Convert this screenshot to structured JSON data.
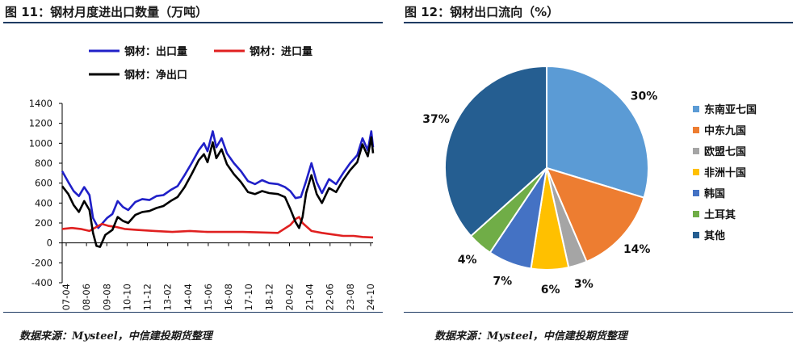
{
  "figures": [
    {
      "title": "图 11：钢材月度进出口数量（万吨）",
      "source": "数据来源：Mysteel，中信建投期货整理"
    },
    {
      "title": "图 12：钢材出口流向（%）",
      "source": "数据来源：Mysteel，中信建投期货整理"
    }
  ],
  "chart_data": [
    {
      "type": "line",
      "ylim": [
        -400,
        1400
      ],
      "yticks": [
        "1400",
        "1200",
        "1000",
        "800",
        "600",
        "400",
        "200",
        "0",
        "-200",
        "-400"
      ],
      "xticks": [
        "2007-04",
        "2008-06",
        "2009-08",
        "2010-10",
        "2011-12",
        "2013-02",
        "2014-04",
        "2015-06",
        "2016-08",
        "2017-10",
        "2018-12",
        "2020-02",
        "2021-04",
        "2022-06",
        "2023-08",
        "2024-10"
      ],
      "legend": "top",
      "series": [
        {
          "name": "钢材：出口量",
          "color": "#2020c8",
          "points": [
            [
              2007.25,
              720
            ],
            [
              2007.6,
              610
            ],
            [
              2007.9,
              520
            ],
            [
              2008.2,
              470
            ],
            [
              2008.5,
              560
            ],
            [
              2008.8,
              480
            ],
            [
              2009.0,
              250
            ],
            [
              2009.3,
              150
            ],
            [
              2009.5,
              190
            ],
            [
              2009.8,
              250
            ],
            [
              2010.1,
              290
            ],
            [
              2010.4,
              420
            ],
            [
              2010.7,
              360
            ],
            [
              2011.0,
              330
            ],
            [
              2011.4,
              410
            ],
            [
              2011.8,
              440
            ],
            [
              2012.2,
              430
            ],
            [
              2012.6,
              470
            ],
            [
              2013.0,
              480
            ],
            [
              2013.4,
              530
            ],
            [
              2013.8,
              570
            ],
            [
              2014.2,
              680
            ],
            [
              2014.6,
              800
            ],
            [
              2015.0,
              930
            ],
            [
              2015.3,
              1000
            ],
            [
              2015.5,
              920
            ],
            [
              2015.8,
              1120
            ],
            [
              2016.0,
              960
            ],
            [
              2016.3,
              1050
            ],
            [
              2016.6,
              900
            ],
            [
              2017.0,
              800
            ],
            [
              2017.4,
              720
            ],
            [
              2017.8,
              620
            ],
            [
              2018.2,
              590
            ],
            [
              2018.6,
              630
            ],
            [
              2019.0,
              600
            ],
            [
              2019.5,
              590
            ],
            [
              2019.9,
              560
            ],
            [
              2020.2,
              520
            ],
            [
              2020.5,
              450
            ],
            [
              2020.8,
              460
            ],
            [
              2021.1,
              620
            ],
            [
              2021.4,
              800
            ],
            [
              2021.7,
              610
            ],
            [
              2022.0,
              500
            ],
            [
              2022.4,
              640
            ],
            [
              2022.8,
              590
            ],
            [
              2023.2,
              700
            ],
            [
              2023.6,
              800
            ],
            [
              2024.0,
              880
            ],
            [
              2024.3,
              1050
            ],
            [
              2024.6,
              930
            ],
            [
              2024.8,
              1120
            ],
            [
              2024.9,
              960
            ]
          ]
        },
        {
          "name": "钢材：进口量",
          "color": "#e02020",
          "points": [
            [
              2007.25,
              140
            ],
            [
              2007.8,
              150
            ],
            [
              2008.3,
              140
            ],
            [
              2008.8,
              120
            ],
            [
              2009.2,
              160
            ],
            [
              2009.5,
              190
            ],
            [
              2009.9,
              170
            ],
            [
              2010.3,
              160
            ],
            [
              2010.8,
              140
            ],
            [
              2011.5,
              130
            ],
            [
              2012.5,
              120
            ],
            [
              2013.5,
              110
            ],
            [
              2014.5,
              120
            ],
            [
              2015.5,
              110
            ],
            [
              2016.5,
              110
            ],
            [
              2017.5,
              110
            ],
            [
              2018.5,
              105
            ],
            [
              2019.5,
              100
            ],
            [
              2020.2,
              180
            ],
            [
              2020.5,
              240
            ],
            [
              2020.7,
              260
            ],
            [
              2020.9,
              200
            ],
            [
              2021.4,
              120
            ],
            [
              2022.0,
              100
            ],
            [
              2022.6,
              85
            ],
            [
              2023.2,
              70
            ],
            [
              2023.8,
              70
            ],
            [
              2024.3,
              60
            ],
            [
              2024.9,
              55
            ]
          ]
        },
        {
          "name": "钢材：净出口",
          "color": "#000000",
          "points": [
            [
              2007.25,
              570
            ],
            [
              2007.6,
              490
            ],
            [
              2007.9,
              380
            ],
            [
              2008.2,
              310
            ],
            [
              2008.5,
              420
            ],
            [
              2008.8,
              330
            ],
            [
              2009.0,
              100
            ],
            [
              2009.2,
              -30
            ],
            [
              2009.4,
              -40
            ],
            [
              2009.7,
              80
            ],
            [
              2010.1,
              130
            ],
            [
              2010.4,
              260
            ],
            [
              2010.7,
              220
            ],
            [
              2011.0,
              200
            ],
            [
              2011.4,
              280
            ],
            [
              2011.8,
              310
            ],
            [
              2012.2,
              320
            ],
            [
              2012.6,
              350
            ],
            [
              2013.0,
              370
            ],
            [
              2013.4,
              420
            ],
            [
              2013.8,
              460
            ],
            [
              2014.2,
              560
            ],
            [
              2014.6,
              690
            ],
            [
              2015.0,
              830
            ],
            [
              2015.3,
              890
            ],
            [
              2015.5,
              810
            ],
            [
              2015.8,
              1010
            ],
            [
              2016.0,
              850
            ],
            [
              2016.3,
              940
            ],
            [
              2016.6,
              790
            ],
            [
              2017.0,
              690
            ],
            [
              2017.4,
              610
            ],
            [
              2017.8,
              510
            ],
            [
              2018.2,
              490
            ],
            [
              2018.6,
              520
            ],
            [
              2019.0,
              500
            ],
            [
              2019.5,
              490
            ],
            [
              2019.9,
              460
            ],
            [
              2020.2,
              340
            ],
            [
              2020.5,
              210
            ],
            [
              2020.7,
              150
            ],
            [
              2020.9,
              260
            ],
            [
              2021.1,
              500
            ],
            [
              2021.4,
              680
            ],
            [
              2021.7,
              490
            ],
            [
              2022.0,
              400
            ],
            [
              2022.4,
              550
            ],
            [
              2022.8,
              510
            ],
            [
              2023.2,
              630
            ],
            [
              2023.6,
              730
            ],
            [
              2024.0,
              810
            ],
            [
              2024.3,
              990
            ],
            [
              2024.6,
              870
            ],
            [
              2024.8,
              1060
            ],
            [
              2024.9,
              900
            ]
          ]
        }
      ]
    },
    {
      "type": "pie",
      "legend": "right",
      "slices": [
        {
          "label": "东南亚七国",
          "value": 30,
          "display": "30%",
          "color": "#5b9bd5"
        },
        {
          "label": "中东九国",
          "value": 14,
          "display": "14%",
          "color": "#ed7d31"
        },
        {
          "label": "欧盟七国",
          "value": 3,
          "display": "3%",
          "color": "#a5a5a5"
        },
        {
          "label": "非洲十国",
          "value": 6,
          "display": "6%",
          "color": "#ffc000"
        },
        {
          "label": "韩国",
          "value": 7,
          "display": "7%",
          "color": "#4472c4"
        },
        {
          "label": "土耳其",
          "value": 4,
          "display": "4%",
          "color": "#70ad47"
        },
        {
          "label": "其他",
          "value": 37,
          "display": "37%",
          "color": "#255e91"
        }
      ]
    }
  ]
}
